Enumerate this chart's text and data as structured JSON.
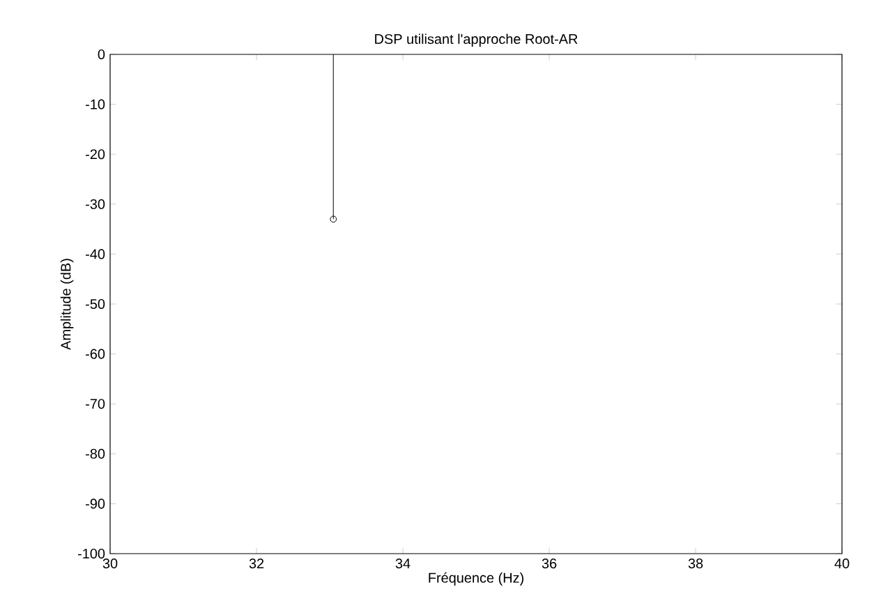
{
  "chart_data": {
    "type": "lollipop",
    "title": "DSP utilisant l'approche Root-AR",
    "xlabel": "Fréquence (Hz)",
    "ylabel": "Amplitude (dB)",
    "x": [
      33.05
    ],
    "values": [
      -33
    ],
    "color": "#000000",
    "marker": "circle",
    "xlim": [
      30,
      40
    ],
    "xticks": [
      30,
      32,
      34,
      36,
      38,
      40
    ],
    "ylim": [
      -100,
      0
    ],
    "yticks": [
      -100,
      -90,
      -80,
      -70,
      -60,
      -50,
      -40,
      -30,
      -20,
      -10,
      0
    ],
    "grid": false
  }
}
